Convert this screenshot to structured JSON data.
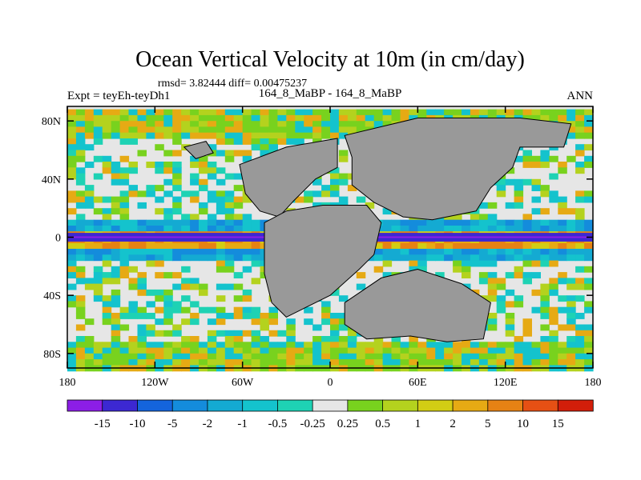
{
  "chart_data": {
    "type": "heatmap",
    "title": "Ocean Vertical Velocity at 10m (in cm/day)",
    "stats_text": "rmsd= 3.82444 diff= 0.00475237",
    "left_label": "Expt = teyEh-teyDh1",
    "center_label": "164_8_MaBP - 164_8_MaBP",
    "right_label": "ANN",
    "xlabel": "",
    "ylabel": "",
    "x_range": [
      -180,
      180
    ],
    "y_range": [
      -90,
      90
    ],
    "x_ticks": [
      {
        "value": -180,
        "label": "180"
      },
      {
        "value": -120,
        "label": "120W"
      },
      {
        "value": -60,
        "label": "60W"
      },
      {
        "value": 0,
        "label": "0"
      },
      {
        "value": 60,
        "label": "60E"
      },
      {
        "value": 120,
        "label": "120E"
      },
      {
        "value": 180,
        "label": "180"
      }
    ],
    "y_ticks": [
      {
        "value": 80,
        "label": "80N"
      },
      {
        "value": 40,
        "label": "40N"
      },
      {
        "value": 0,
        "label": "0"
      },
      {
        "value": -40,
        "label": "40S"
      },
      {
        "value": -80,
        "label": "80S"
      }
    ],
    "colorbar": {
      "labels": [
        "-15",
        "-10",
        "-5",
        "-2",
        "-1",
        "-0.5",
        "-0.25",
        "0.25",
        "0.5",
        "1",
        "2",
        "5",
        "10",
        "15"
      ],
      "colors": [
        "#8c1ee6",
        "#3c28d2",
        "#1464dc",
        "#148cdc",
        "#14aad2",
        "#14c3cd",
        "#1ed2b4",
        "#e6e6e6",
        "#78d21e",
        "#b4d21e",
        "#d2cd14",
        "#e6aa14",
        "#e68214",
        "#e65014",
        "#d21e0a"
      ]
    },
    "land_color": "#999999",
    "equatorial_band": {
      "lat_range": [
        -3,
        3
      ],
      "value_description": "strong upwelling along equator (>15) flanked by downwelling"
    }
  }
}
